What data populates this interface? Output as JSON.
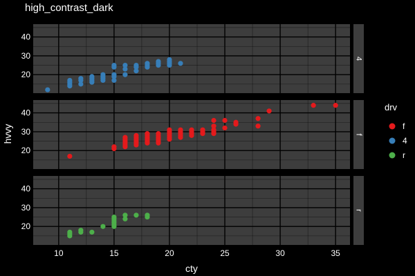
{
  "chart_data": {
    "type": "scatter",
    "title": "high_contrast_dark",
    "xlabel": "cty",
    "ylabel": "hvvy",
    "xlim": [
      7.7,
      36.3
    ],
    "ylim": [
      10.2,
      46.8
    ],
    "x_ticks": [
      10,
      15,
      20,
      25,
      30,
      35
    ],
    "y_ticks": [
      20,
      30,
      40
    ],
    "grid": true,
    "legend": {
      "title": "drv",
      "position": "right",
      "entries": [
        {
          "label": "f",
          "color": "#E41A1C"
        },
        {
          "label": "4",
          "color": "#377EB8"
        },
        {
          "label": "r",
          "color": "#4DAF4A"
        }
      ]
    },
    "facets": [
      {
        "label": "4",
        "color": "#377EB8",
        "points": [
          [
            9,
            12
          ],
          [
            11,
            14
          ],
          [
            11,
            15
          ],
          [
            11,
            16
          ],
          [
            11,
            17
          ],
          [
            12,
            15
          ],
          [
            12,
            17
          ],
          [
            12,
            18
          ],
          [
            13,
            16
          ],
          [
            13,
            17
          ],
          [
            13,
            18
          ],
          [
            13,
            19
          ],
          [
            14,
            17
          ],
          [
            14,
            18
          ],
          [
            14,
            19
          ],
          [
            14,
            20
          ],
          [
            15,
            17
          ],
          [
            15,
            19
          ],
          [
            15,
            20
          ],
          [
            15,
            24
          ],
          [
            15,
            25
          ],
          [
            16,
            20
          ],
          [
            16,
            23
          ],
          [
            16,
            25
          ],
          [
            17,
            22
          ],
          [
            17,
            24
          ],
          [
            17,
            25
          ],
          [
            18,
            24
          ],
          [
            18,
            25
          ],
          [
            18,
            26
          ],
          [
            19,
            25
          ],
          [
            19,
            26
          ],
          [
            19,
            27
          ],
          [
            20,
            25
          ],
          [
            20,
            26
          ],
          [
            20,
            27
          ],
          [
            20,
            28
          ],
          [
            21,
            26
          ]
        ]
      },
      {
        "label": "f",
        "color": "#E41A1C",
        "points": [
          [
            11,
            17
          ],
          [
            15,
            21
          ],
          [
            15,
            22
          ],
          [
            16,
            22
          ],
          [
            16,
            23
          ],
          [
            16,
            24
          ],
          [
            16,
            25
          ],
          [
            16,
            26
          ],
          [
            16,
            27
          ],
          [
            17,
            23
          ],
          [
            17,
            24
          ],
          [
            17,
            25
          ],
          [
            17,
            26
          ],
          [
            17,
            27
          ],
          [
            17,
            28
          ],
          [
            18,
            24
          ],
          [
            18,
            25
          ],
          [
            18,
            26
          ],
          [
            18,
            27
          ],
          [
            18,
            28
          ],
          [
            18,
            29
          ],
          [
            19,
            24
          ],
          [
            19,
            25
          ],
          [
            19,
            26
          ],
          [
            19,
            27
          ],
          [
            19,
            28
          ],
          [
            19,
            29
          ],
          [
            20,
            26
          ],
          [
            20,
            27
          ],
          [
            20,
            28
          ],
          [
            20,
            29
          ],
          [
            20,
            30
          ],
          [
            20,
            31
          ],
          [
            21,
            27
          ],
          [
            21,
            28
          ],
          [
            21,
            29
          ],
          [
            21,
            30
          ],
          [
            21,
            31
          ],
          [
            22,
            28
          ],
          [
            22,
            29
          ],
          [
            22,
            30
          ],
          [
            22,
            31
          ],
          [
            23,
            29
          ],
          [
            23,
            30
          ],
          [
            23,
            31
          ],
          [
            24,
            29
          ],
          [
            24,
            30
          ],
          [
            24,
            31
          ],
          [
            24,
            33
          ],
          [
            24,
            36
          ],
          [
            25,
            32
          ],
          [
            25,
            36
          ],
          [
            26,
            34
          ],
          [
            26,
            35
          ],
          [
            28,
            33
          ],
          [
            28,
            37
          ],
          [
            29,
            41
          ],
          [
            33,
            44
          ],
          [
            35,
            44
          ]
        ]
      },
      {
        "label": "r",
        "color": "#4DAF4A",
        "points": [
          [
            11,
            15
          ],
          [
            11,
            16
          ],
          [
            11,
            17
          ],
          [
            12,
            17
          ],
          [
            12,
            18
          ],
          [
            13,
            17
          ],
          [
            14,
            20
          ],
          [
            15,
            20
          ],
          [
            15,
            21
          ],
          [
            15,
            22
          ],
          [
            15,
            23
          ],
          [
            15,
            24
          ],
          [
            15,
            25
          ],
          [
            16,
            24
          ],
          [
            16,
            26
          ],
          [
            17,
            26
          ],
          [
            18,
            25
          ],
          [
            18,
            26
          ]
        ]
      }
    ]
  }
}
